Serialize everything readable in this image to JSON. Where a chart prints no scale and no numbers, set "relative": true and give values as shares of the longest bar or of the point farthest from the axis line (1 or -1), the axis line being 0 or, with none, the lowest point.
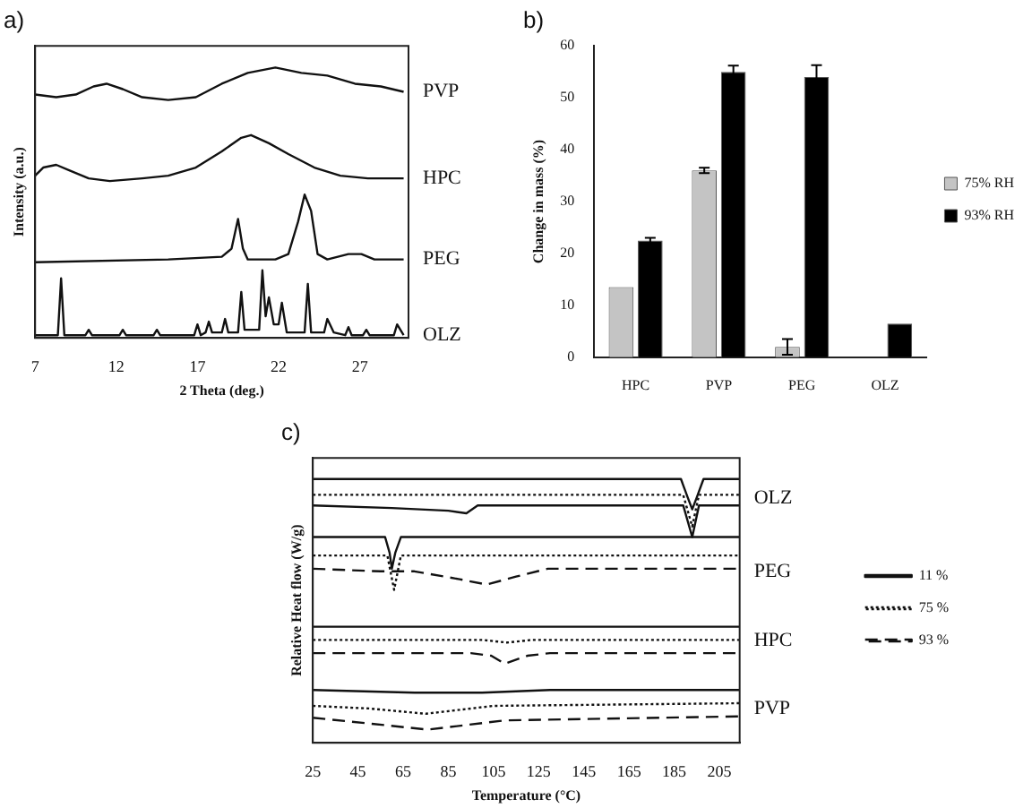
{
  "chart_data": [
    {
      "type": "line",
      "title": "a)",
      "xlabel": "2 Theta (deg.)",
      "ylabel": "Intensity (a.u.)",
      "relative": true,
      "xlim": [
        7,
        30
      ],
      "xticks": [
        7,
        12,
        17,
        22,
        27
      ],
      "tick_labels": "x",
      "legend": false,
      "grid": false,
      "series": [
        {
          "name": "PVP",
          "color": "#111111",
          "x": [
            7,
            8.3,
            9.5,
            10.6,
            11.4,
            12.4,
            13.6,
            15.2,
            16.9,
            18.5,
            20.1,
            21.8,
            23.4,
            25.0,
            26.7,
            28.3,
            29.7
          ],
          "values": [
            0.9,
            0.89,
            0.9,
            0.93,
            0.94,
            0.92,
            0.89,
            0.88,
            0.89,
            0.94,
            0.98,
            1.0,
            0.98,
            0.97,
            0.94,
            0.93,
            0.91
          ]
        },
        {
          "name": "HPC",
          "color": "#111111",
          "x": [
            7,
            7.5,
            8.3,
            9.1,
            10.3,
            11.6,
            13.6,
            15.2,
            16.9,
            18.5,
            19.7,
            20.3,
            21.4,
            22.6,
            24.2,
            25.8,
            27.5,
            29.7
          ],
          "values": [
            0.6,
            0.63,
            0.64,
            0.62,
            0.59,
            0.58,
            0.59,
            0.6,
            0.63,
            0.69,
            0.74,
            0.75,
            0.72,
            0.68,
            0.63,
            0.6,
            0.59,
            0.59
          ]
        },
        {
          "name": "PEG",
          "color": "#111111",
          "x": [
            7,
            15.2,
            18.5,
            19.1,
            19.5,
            19.8,
            20.1,
            21.8,
            22.6,
            23.2,
            23.6,
            24.0,
            24.4,
            25.0,
            26.3,
            27.1,
            27.9,
            29.7
          ],
          "values": [
            0.28,
            0.29,
            0.3,
            0.33,
            0.44,
            0.33,
            0.29,
            0.29,
            0.31,
            0.43,
            0.53,
            0.47,
            0.31,
            0.29,
            0.31,
            0.31,
            0.29,
            0.29
          ]
        },
        {
          "name": "OLZ",
          "color": "#111111",
          "x": [
            7,
            8.4,
            8.6,
            8.8,
            10.1,
            10.3,
            10.5,
            12.2,
            12.4,
            12.6,
            14.3,
            14.5,
            14.7,
            16.8,
            17,
            17.2,
            17.5,
            17.7,
            17.9,
            18.5,
            18.7,
            18.9,
            19.5,
            19.7,
            19.9,
            20.8,
            21,
            21.2,
            21.4,
            21.7,
            22.0,
            22.2,
            22.5,
            23.6,
            23.8,
            24.0,
            24.8,
            25,
            25.4,
            26.1,
            26.3,
            26.5,
            27.2,
            27.4,
            27.6,
            29.1,
            29.3,
            29.7
          ],
          "values": [
            0.01,
            0.01,
            0.22,
            0.01,
            0.01,
            0.03,
            0.01,
            0.01,
            0.03,
            0.01,
            0.01,
            0.03,
            0.01,
            0.01,
            0.05,
            0.01,
            0.02,
            0.06,
            0.02,
            0.02,
            0.07,
            0.02,
            0.02,
            0.17,
            0.03,
            0.03,
            0.25,
            0.08,
            0.15,
            0.05,
            0.05,
            0.13,
            0.02,
            0.02,
            0.2,
            0.02,
            0.02,
            0.07,
            0.02,
            0.01,
            0.04,
            0.01,
            0.01,
            0.03,
            0.01,
            0.01,
            0.05,
            0.01
          ]
        }
      ]
    },
    {
      "type": "bar",
      "title": "b)",
      "ylabel": "Change in mass (%)",
      "categories": [
        "HPC",
        "PVP",
        "PEG",
        "OLZ"
      ],
      "ylim": [
        0,
        60
      ],
      "yticks": [
        0,
        10,
        20,
        30,
        40,
        50,
        60
      ],
      "legend": "right",
      "grid": false,
      "series": [
        {
          "name": "75% RH",
          "color": "#c4c4c4",
          "values": [
            13.5,
            36,
            2,
            null
          ],
          "errors": [
            null,
            0.5,
            1.5,
            null
          ]
        },
        {
          "name": "93% RH",
          "color": "#000000",
          "values": [
            22.5,
            55,
            54,
            6.5
          ],
          "errors": [
            0.5,
            1.2,
            2.3,
            null
          ]
        }
      ]
    },
    {
      "type": "line",
      "title": "c)",
      "xlabel": "Temperature (°C)",
      "ylabel": "Relative Heat flow (W/g)",
      "relative": true,
      "xlim": [
        25,
        214
      ],
      "xticks": [
        25,
        45,
        65,
        85,
        105,
        125,
        145,
        165,
        185,
        205
      ],
      "tick_labels": "x",
      "legend": "right",
      "grid": false,
      "annotations": [
        "OLZ",
        "PEG",
        "HPC",
        "PVP"
      ],
      "series": [
        {
          "name": "11 %",
          "color": "#111111",
          "line_style": "solid",
          "x": [
            25,
            57,
            59,
            60,
            61.5,
            64,
            214
          ],
          "values": [
            0.78,
            0.78,
            0.72,
            0.66,
            0.72,
            0.78,
            0.78
          ]
        },
        {
          "name": "75 %",
          "color": "#111111",
          "line_style": "dotted",
          "x": [
            25,
            58,
            61,
            64,
            214
          ],
          "values": [
            0.71,
            0.71,
            0.58,
            0.71,
            0.71
          ]
        },
        {
          "name": "93 %",
          "color": "#111111",
          "line_style": "dashed",
          "x": [
            25,
            55,
            70,
            90,
            102,
            115,
            129,
            214
          ],
          "values": [
            0.66,
            0.65,
            0.65,
            0.62,
            0.6,
            0.63,
            0.66,
            0.66
          ]
        },
        {
          "color": "#111111",
          "line_style": "solid",
          "x": [
            25,
            188,
            191,
            193,
            195,
            198,
            214
          ],
          "values": [
            1.0,
            1.0,
            0.93,
            0.885,
            0.93,
            1.0,
            1.0
          ]
        },
        {
          "color": "#111111",
          "line_style": "dotted",
          "x": [
            25,
            189,
            193,
            196,
            214
          ],
          "values": [
            0.94,
            0.94,
            0.82,
            0.94,
            0.94
          ]
        },
        {
          "color": "#111111",
          "line_style": "solid",
          "x": [
            25,
            60,
            85,
            93,
            98,
            189,
            193,
            196,
            214
          ],
          "values": [
            0.9,
            0.89,
            0.88,
            0.87,
            0.9,
            0.9,
            0.78,
            0.9,
            0.9
          ]
        },
        {
          "color": "#111111",
          "line_style": "solid",
          "x": [
            25,
            214
          ],
          "values": [
            0.44,
            0.44
          ]
        },
        {
          "color": "#111111",
          "line_style": "dotted",
          "x": [
            25,
            100,
            111,
            122,
            214
          ],
          "values": [
            0.39,
            0.39,
            0.38,
            0.39,
            0.39
          ]
        },
        {
          "color": "#111111",
          "line_style": "dashed",
          "x": [
            25,
            95,
            104,
            110,
            120,
            130,
            214
          ],
          "values": [
            0.34,
            0.34,
            0.33,
            0.3,
            0.33,
            0.34,
            0.34
          ]
        },
        {
          "color": "#111111",
          "line_style": "solid",
          "x": [
            25,
            70,
            100,
            130,
            214
          ],
          "values": [
            0.2,
            0.19,
            0.19,
            0.2,
            0.2
          ]
        },
        {
          "color": "#111111",
          "line_style": "dotted",
          "x": [
            25,
            50,
            75,
            105,
            214
          ],
          "values": [
            0.14,
            0.13,
            0.11,
            0.14,
            0.15
          ]
        },
        {
          "color": "#111111",
          "line_style": "dashed",
          "x": [
            25,
            76,
            110,
            214
          ],
          "values": [
            0.095,
            0.05,
            0.085,
            0.1
          ]
        }
      ]
    }
  ]
}
